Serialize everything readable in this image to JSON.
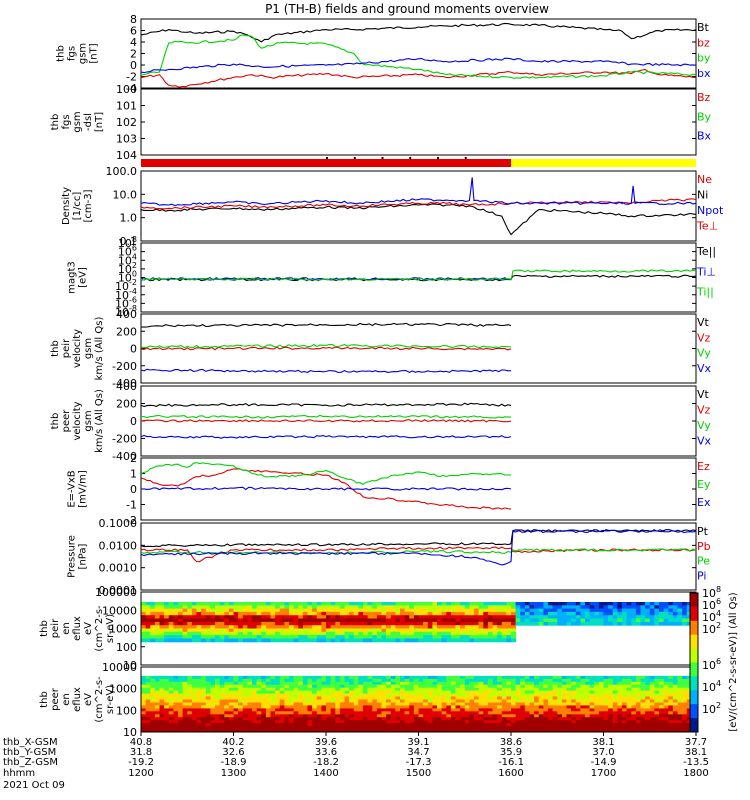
{
  "title": "P1 (TH-B) fields and ground moments overview",
  "colors": {
    "black": "#000000",
    "red": "#e10000",
    "green": "#00d200",
    "blue": "#0000e6",
    "yellow": "#ffff00",
    "white": "#ffffff"
  },
  "chart_data": [
    {
      "type": "line",
      "panel": "fgs-gsm",
      "ylabel": [
        "thb",
        "fgs",
        "gsm",
        "[nT]"
      ],
      "y_ticks": [
        "8",
        "6",
        "4",
        "2",
        "0",
        "-2",
        "-4"
      ],
      "ylim": [
        -4.5,
        8.5
      ],
      "legend": [
        {
          "name": "Bt",
          "color": "black"
        },
        {
          "name": "bz",
          "color": "red"
        },
        {
          "name": "by",
          "color": "green"
        },
        {
          "name": "bx",
          "color": "blue"
        }
      ],
      "series": [
        {
          "name": "Bt",
          "color": "black",
          "x": [
            1200,
            1230,
            1250,
            1260,
            1300,
            1315,
            1330,
            1345,
            1400,
            1430,
            1500,
            1530,
            1600,
            1630,
            1700,
            1720,
            1730,
            1760,
            1800
          ],
          "y": [
            5.5,
            6.5,
            6,
            5.8,
            6.2,
            5.5,
            4.2,
            5.5,
            6.5,
            6.5,
            7,
            7.2,
            7.5,
            7.3,
            6.5,
            6.2,
            4.8,
            6.3,
            6.5
          ]
        },
        {
          "name": "bz",
          "color": "red",
          "x": [
            1200,
            1220,
            1230,
            1245,
            1300,
            1320,
            1340,
            1400,
            1430,
            1500,
            1530,
            1600,
            1630,
            1700,
            1730,
            1745,
            1760,
            1800
          ],
          "y": [
            -2.5,
            -2,
            -4,
            -4.2,
            -2.5,
            -2,
            -2.5,
            -1.8,
            -2.5,
            -2,
            -2.5,
            -1.5,
            -2,
            -1.5,
            -1.8,
            -1,
            -2,
            -2.5
          ]
        },
        {
          "name": "by",
          "color": "green",
          "x": [
            1200,
            1220,
            1230,
            1240,
            1250,
            1300,
            1310,
            1320,
            1330,
            1350,
            1400,
            1430,
            1440,
            1500,
            1530,
            1600,
            1630,
            1700,
            1730,
            1800
          ],
          "y": [
            -2,
            -1.5,
            4,
            4.2,
            4,
            4.5,
            5.5,
            5.2,
            3,
            4,
            3.8,
            2,
            0,
            -1,
            -2,
            -2.5,
            -2.5,
            -2.2,
            -1.5,
            -2
          ]
        },
        {
          "name": "bx",
          "color": "blue",
          "x": [
            1200,
            1230,
            1300,
            1330,
            1400,
            1430,
            1500,
            1530,
            1600,
            1630,
            1700,
            1730,
            1800
          ],
          "y": [
            -1.5,
            -1,
            0,
            -0.5,
            -0.2,
            0,
            1,
            0.5,
            1,
            0.5,
            0.5,
            0,
            -0.2
          ]
        }
      ]
    },
    {
      "type": "line",
      "panel": "fgs-gsm-dsl",
      "ylabel": [
        "thb",
        "fgs",
        "gsm",
        "-dsl",
        "[nT]"
      ],
      "y_ticks": [
        "100",
        "101",
        "102",
        "103",
        "104"
      ],
      "ylim": [
        100,
        105
      ],
      "legend": [
        {
          "name": "Bz",
          "color": "red"
        },
        {
          "name": "By",
          "color": "green"
        },
        {
          "name": "Bx",
          "color": "blue"
        }
      ],
      "series": []
    },
    {
      "type": "bar",
      "panel": "mode-bar",
      "segments": [
        {
          "x": [
            1200,
            1300
          ],
          "color": "red"
        },
        {
          "x": [
            1300,
            1600
          ],
          "color": "red"
        },
        {
          "x": [
            1600,
            1800
          ],
          "color": "yellow"
        }
      ]
    },
    {
      "type": "line",
      "panel": "density",
      "log": true,
      "ylabel": [
        "Density",
        "[1/cc]",
        "[cm-3]"
      ],
      "y_ticks": [
        "100.0",
        "10.0",
        "1.0",
        "0.1"
      ],
      "ylim": [
        0.1,
        200
      ],
      "legend": [
        {
          "name": "Ne",
          "color": "red"
        },
        {
          "name": "Ni",
          "color": "black"
        },
        {
          "name": "Npot",
          "color": "blue"
        },
        {
          "name": "Te⊥",
          "color": "red"
        }
      ],
      "series": [
        {
          "name": "Ni",
          "color": "black",
          "x": [
            1200,
            1230,
            1300,
            1330,
            1400,
            1430,
            1500,
            1530,
            1555,
            1560,
            1590,
            1600,
            1630,
            1700,
            1730,
            1800
          ],
          "y": [
            3,
            2.8,
            3.5,
            3,
            4,
            3.5,
            5,
            5,
            4.5,
            4,
            1.5,
            0.2,
            3,
            2,
            1.5,
            1.8
          ]
        },
        {
          "name": "Ne",
          "color": "red",
          "x": [
            1200,
            1230,
            1300,
            1330,
            1400,
            1430,
            1500,
            1530,
            1555,
            1600,
            1630,
            1700,
            1730,
            1760,
            1800
          ],
          "y": [
            4,
            3.5,
            4.5,
            4,
            5,
            4.5,
            6,
            6,
            5,
            6,
            6.5,
            7,
            6,
            8,
            9
          ]
        },
        {
          "name": "Npot",
          "color": "blue",
          "x": [
            1200,
            1230,
            1300,
            1330,
            1400,
            1430,
            1500,
            1530,
            1555,
            1558,
            1560,
            1600,
            1610,
            1730,
            1732,
            1734,
            1800
          ],
          "y": [
            6,
            5,
            7,
            5.5,
            8,
            6,
            9,
            8.5,
            8,
            100,
            8,
            6,
            6,
            6,
            40,
            6,
            6
          ]
        }
      ]
    },
    {
      "type": "line",
      "panel": "temperature",
      "log": true,
      "ylabel": [
        "magt3",
        "[eV]"
      ],
      "y_ticks": [
        "10",
        "10",
        "10",
        "10",
        "10",
        "10",
        "10",
        "10",
        "10"
      ],
      "y_tick_exps": [
        "8",
        "6",
        "4",
        "2",
        "0",
        "-2",
        "-4",
        "-6",
        "-8"
      ],
      "ylim": [
        -8,
        8
      ],
      "legend": [
        {
          "name": "Te||",
          "color": "black"
        },
        {
          "name": "Ti⊥",
          "color": "blue"
        },
        {
          "name": "Ti||",
          "color": "green"
        }
      ],
      "series": [
        {
          "name": "Te||",
          "color": "black",
          "x": [
            1200,
            1600,
            1602,
            1800
          ],
          "y": [
            -0.5,
            -0.5,
            0.3,
            0.3
          ]
        },
        {
          "name": "Ti⊥",
          "color": "blue",
          "x": [
            1200,
            1600
          ],
          "y": [
            -0.3,
            -0.3
          ]
        },
        {
          "name": "Ti||",
          "color": "green",
          "x": [
            1200,
            1600,
            1602,
            1800
          ],
          "y": [
            -0.4,
            -0.4,
            1.5,
            1.5
          ]
        }
      ]
    },
    {
      "type": "line",
      "panel": "peir-velocity",
      "ylabel": [
        "thb",
        "peir",
        "velocity",
        "gsm",
        "km/s (All Qs)"
      ],
      "y_ticks": [
        "400",
        "200",
        "0",
        "-200",
        "-400"
      ],
      "ylim": [
        -450,
        450
      ],
      "legend": [
        {
          "name": "Vt",
          "color": "black"
        },
        {
          "name": "Vz",
          "color": "red"
        },
        {
          "name": "Vy",
          "color": "green"
        },
        {
          "name": "Vx",
          "color": "blue"
        }
      ],
      "series": [
        {
          "name": "Vt",
          "color": "black",
          "x": [
            1200,
            1230,
            1300,
            1400,
            1500,
            1600
          ],
          "y": [
            280,
            300,
            300,
            310,
            315,
            300
          ]
        },
        {
          "name": "Vz",
          "color": "red",
          "x": [
            1200,
            1300,
            1400,
            1500,
            1600
          ],
          "y": [
            -5,
            0,
            5,
            0,
            -5
          ]
        },
        {
          "name": "Vy",
          "color": "green",
          "x": [
            1200,
            1300,
            1400,
            1500,
            1600
          ],
          "y": [
            20,
            30,
            40,
            30,
            20
          ]
        },
        {
          "name": "Vx",
          "color": "blue",
          "x": [
            1200,
            1300,
            1400,
            1500,
            1600
          ],
          "y": [
            -280,
            -290,
            -300,
            -300,
            -290
          ]
        }
      ]
    },
    {
      "type": "line",
      "panel": "peer-velocity",
      "ylabel": [
        "thb",
        "peer",
        "velocity",
        "gsm",
        "km/s (All Qs)"
      ],
      "y_ticks": [
        "400",
        "200",
        "0",
        "-200",
        "-400"
      ],
      "ylim": [
        -450,
        450
      ],
      "legend": [
        {
          "name": "Vt",
          "color": "black"
        },
        {
          "name": "Vz",
          "color": "red"
        },
        {
          "name": "Vy",
          "color": "green"
        },
        {
          "name": "Vx",
          "color": "blue"
        }
      ],
      "series": [
        {
          "name": "Vt",
          "color": "black",
          "x": [
            1200,
            1300,
            1400,
            1500,
            1560,
            1600
          ],
          "y": [
            200,
            210,
            205,
            210,
            220,
            200
          ]
        },
        {
          "name": "Vz",
          "color": "red",
          "x": [
            1200,
            1300,
            1400,
            1500,
            1600
          ],
          "y": [
            0,
            5,
            0,
            5,
            0
          ]
        },
        {
          "name": "Vy",
          "color": "green",
          "x": [
            1200,
            1300,
            1400,
            1500,
            1600
          ],
          "y": [
            60,
            50,
            60,
            55,
            50
          ]
        },
        {
          "name": "Vx",
          "color": "blue",
          "x": [
            1200,
            1300,
            1400,
            1500,
            1600
          ],
          "y": [
            -200,
            -210,
            -200,
            -205,
            -200
          ]
        }
      ]
    },
    {
      "type": "line",
      "panel": "efield",
      "ylabel": [
        "E=-VxB",
        "[mV/m]"
      ],
      "y_ticks": [
        "2",
        "1",
        "0",
        "-1",
        "-2"
      ],
      "ylim": [
        -2,
        2
      ],
      "legend": [
        {
          "name": "Ez",
          "color": "red"
        },
        {
          "name": "Ey",
          "color": "green"
        },
        {
          "name": "Ex",
          "color": "blue"
        }
      ],
      "series": [
        {
          "name": "Ez",
          "color": "red",
          "x": [
            1200,
            1220,
            1240,
            1260,
            1280,
            1300,
            1320,
            1340,
            1400,
            1420,
            1440,
            1500,
            1520,
            1540,
            1560,
            1600
          ],
          "y": [
            0.7,
            0.3,
            0.2,
            0.8,
            0.9,
            1.3,
            1.2,
            1.1,
            0.9,
            0.4,
            -0.5,
            -0.8,
            -1,
            -1.1,
            -1.2,
            -1.3
          ]
        },
        {
          "name": "Ey",
          "color": "green",
          "x": [
            1200,
            1220,
            1240,
            1250,
            1260,
            1300,
            1320,
            1340,
            1380,
            1400,
            1420,
            1440,
            1460,
            1500,
            1530,
            1560,
            1600
          ],
          "y": [
            1,
            1.5,
            1.6,
            1.4,
            1.7,
            1.5,
            1,
            0.8,
            0.9,
            1.2,
            0.7,
            0.3,
            0.7,
            1.1,
            0.8,
            1,
            0.9
          ]
        },
        {
          "name": "Ex",
          "color": "blue",
          "x": [
            1200,
            1300,
            1400,
            1500,
            1600
          ],
          "y": [
            0,
            0.05,
            0,
            0,
            0
          ]
        }
      ]
    },
    {
      "type": "line",
      "panel": "pressure",
      "log": true,
      "ylabel": [
        "Pressure",
        "[nPa]"
      ],
      "y_ticks": [
        "0.1000",
        "0.0100",
        "0.0010",
        "0.0001"
      ],
      "ylim": [
        0.0001,
        0.3
      ],
      "legend": [
        {
          "name": "Pt",
          "color": "black"
        },
        {
          "name": "Pb",
          "color": "red"
        },
        {
          "name": "Pe",
          "color": "green"
        },
        {
          "name": "Pi",
          "color": "blue"
        }
      ],
      "series": [
        {
          "name": "Pt",
          "color": "black",
          "x": [
            1200,
            1300,
            1400,
            1500,
            1600,
            1602,
            1800
          ],
          "y": [
            0.02,
            0.022,
            0.022,
            0.025,
            0.025,
            0.12,
            0.12
          ]
        },
        {
          "name": "Pb",
          "color": "red",
          "x": [
            1200,
            1250,
            1260,
            1300,
            1400,
            1500,
            1600,
            1602,
            1700,
            1800
          ],
          "y": [
            0.012,
            0.012,
            0.003,
            0.012,
            0.012,
            0.015,
            0.015,
            0.01,
            0.012,
            0.012
          ]
        },
        {
          "name": "Pe",
          "color": "green",
          "x": [
            1200,
            1300,
            1400,
            1500,
            1600,
            1602,
            1800
          ],
          "y": [
            0.009,
            0.009,
            0.008,
            0.01,
            0.009,
            0.012,
            0.012
          ]
        },
        {
          "name": "Pi",
          "color": "blue",
          "x": [
            1200,
            1300,
            1400,
            1500,
            1560,
            1590,
            1600,
            1602,
            1800
          ],
          "y": [
            0.007,
            0.008,
            0.008,
            0.008,
            0.005,
            0.002,
            0.003,
            0.11,
            0.11
          ]
        }
      ]
    },
    {
      "type": "heatmap",
      "panel": "peir-en-eflux",
      "ylabel": [
        "thb",
        "peir",
        "en",
        "eflux",
        "eV",
        "(cm^2-s-",
        "sr-eV)"
      ],
      "y_ticks": [
        "100000",
        "10000",
        "1000",
        "100",
        "10"
      ],
      "band_peak_log": 2.6,
      "ylim": [
        5,
        100000
      ]
    },
    {
      "type": "heatmap",
      "panel": "peer-en-eflux",
      "ylabel": [
        "thb",
        "peer",
        "en",
        "eflux",
        "eV",
        "(cm^2-s-",
        "sr-eV)"
      ],
      "y_ticks": [
        "10000",
        "1000",
        "100",
        "10"
      ],
      "ylim": [
        5,
        30000
      ]
    }
  ],
  "colorbar": {
    "ticks_top": [
      "10",
      "10",
      "10",
      "10"
    ],
    "ticks_top_exps": [
      "8",
      "6",
      "4",
      "2"
    ],
    "ticks_bottom": [
      "10",
      "10",
      "10"
    ],
    "ticks_bottom_exps": [
      "6",
      "4",
      "2"
    ],
    "label": "[eV/(cm^2-s-sr-eV)] (All Qs)"
  },
  "x_axis": {
    "xlim": [
      1200,
      1800
    ],
    "row_labels": [
      "thb_X-GSM",
      "thb_Y-GSM",
      "thb_Z-GSM",
      "hhmm",
      "2021 Oct 09"
    ],
    "columns": [
      {
        "x": 1200,
        "vals": [
          "40.8",
          "31.8",
          "-19.2",
          "1200"
        ]
      },
      {
        "x": 1300,
        "vals": [
          "40.2",
          "32.6",
          "-18.9",
          "1300"
        ]
      },
      {
        "x": 1400,
        "vals": [
          "39.6",
          "33.6",
          "-18.2",
          "1400"
        ]
      },
      {
        "x": 1500,
        "vals": [
          "39.1",
          "34.7",
          "-17.3",
          "1500"
        ]
      },
      {
        "x": 1600,
        "vals": [
          "38.6",
          "35.9",
          "-16.1",
          "1600"
        ]
      },
      {
        "x": 1700,
        "vals": [
          "38.1",
          "37.0",
          "-14.9",
          "1700"
        ]
      },
      {
        "x": 1800,
        "vals": [
          "37.7",
          "38.1",
          "-13.5",
          "1800"
        ]
      }
    ]
  }
}
